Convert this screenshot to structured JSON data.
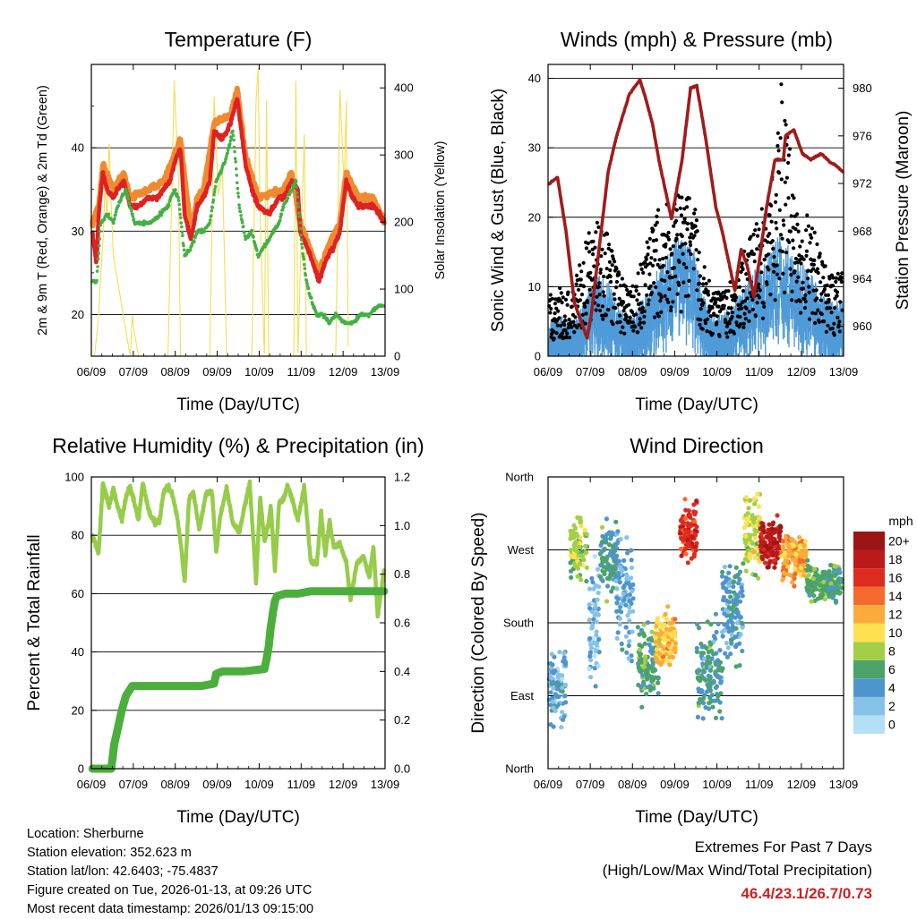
{
  "panels": {
    "temperature": {
      "title": "Temperature (F)",
      "xlabel": "Time (Day/UTC)",
      "ylabel_left": "2m & 9m T (Red, Orange) & 2m Td (Green)",
      "ylabel_right": "Solar Insolation (Yellow)"
    },
    "winds": {
      "title": "Winds (mph) & Pressure (mb)",
      "xlabel": "Time (Day/UTC)",
      "ylabel_left": "Sonic Wind & Gust (Blue, Black)",
      "ylabel_right": "Station Pressure (Maroon)"
    },
    "humidity": {
      "title": "Relative Humidity (%) & Precipitation (in)",
      "xlabel": "Time (Day/UTC)",
      "ylabel_left": "Percent & Total Rainfall"
    },
    "direction": {
      "title": "Wind Direction",
      "xlabel": "Time (Day/UTC)",
      "ylabel_left": "Direction (Colored By Speed)",
      "legend_title": "mph"
    }
  },
  "info": {
    "location": "Location: Sherburne",
    "elevation": "Station elevation: 352.623 m",
    "latlon": "Station lat/lon: 42.6403; -75.4837",
    "created": "Figure created on Tue, 2026-01-13, at 09:26 UTC",
    "recent": "Most recent data timestamp: 2026/01/13 09:15:00"
  },
  "extremes": {
    "line1": "Extremes For Past 7 Days",
    "line2": "(High/Low/Max Wind/Total Precipitation)",
    "values": "46.4/23.1/26.7/0.73"
  },
  "colors": {
    "temp2m": "#dd2222",
    "temp9m": "#f08a30",
    "dewpoint": "#44b044",
    "solar": "#f5dd55",
    "wind": "#4f9bd8",
    "gust": "#000000",
    "pressure": "#a01c1c",
    "rh": "#96cc4a",
    "precip": "#4cae3c"
  },
  "chart_data": [
    {
      "type": "line",
      "title": "Temperature (F)",
      "xlabel": "Time (Day/UTC)",
      "xticks": [
        "06/09",
        "07/09",
        "08/09",
        "09/09",
        "10/09",
        "11/09",
        "12/09",
        "13/09"
      ],
      "xlim": [
        6.375,
        13.375
      ],
      "ylim": [
        15,
        50
      ],
      "yticks": [
        20,
        30,
        40
      ],
      "ylim_right": [
        0,
        435
      ],
      "yticks_right": [
        0,
        100,
        200,
        300,
        400
      ],
      "series": [
        {
          "name": "2m T",
          "axis": "left",
          "x": [
            6.4,
            6.5,
            6.55,
            6.65,
            6.75,
            6.9,
            7.0,
            7.15,
            7.3,
            7.5,
            7.75,
            7.95,
            8.1,
            8.25,
            8.35,
            8.5,
            8.6,
            8.75,
            8.9,
            9.05,
            9.2,
            9.3,
            9.5,
            9.7,
            9.85,
            10.05,
            10.2,
            10.35,
            10.6,
            10.85,
            10.95,
            11.15,
            11.3,
            11.35,
            11.6,
            11.8,
            12.0,
            12.15,
            12.3,
            12.45,
            12.6,
            12.75,
            12.95,
            13.1,
            13.25,
            13.35
          ],
          "values": [
            30,
            26,
            32,
            37,
            35,
            34,
            35,
            36,
            33,
            33,
            34,
            34,
            35,
            36,
            38,
            40,
            32,
            29,
            33,
            34,
            36,
            42,
            41,
            43,
            46,
            38,
            35,
            33,
            32,
            34,
            34,
            36,
            35,
            30,
            27,
            24,
            27,
            28,
            30,
            36,
            34,
            33,
            33,
            33,
            32,
            31
          ]
        },
        {
          "name": "9m T",
          "axis": "left",
          "x": [
            6.4,
            6.55,
            6.65,
            6.9,
            7.15,
            7.3,
            7.75,
            8.1,
            8.35,
            8.5,
            8.75,
            8.9,
            9.05,
            9.3,
            9.7,
            9.85,
            10.05,
            10.35,
            10.95,
            11.15,
            11.35,
            11.8,
            12.0,
            12.3,
            12.45,
            12.75,
            13.1,
            13.35
          ],
          "values": [
            31,
            33,
            38,
            35,
            37,
            34,
            35,
            36,
            39,
            41,
            30,
            34,
            35,
            43,
            44,
            47,
            39,
            34,
            35,
            37,
            31,
            25,
            28,
            31,
            37,
            34,
            34,
            31
          ]
        },
        {
          "name": "2m Td",
          "axis": "left",
          "x": [
            6.4,
            6.5,
            6.6,
            6.75,
            6.9,
            7.0,
            7.2,
            7.4,
            7.6,
            7.8,
            8.0,
            8.2,
            8.35,
            8.45,
            8.6,
            8.75,
            8.9,
            9.05,
            9.2,
            9.35,
            9.45,
            9.6,
            9.75,
            9.9,
            10.05,
            10.2,
            10.35,
            10.6,
            10.85,
            10.95,
            11.15,
            11.25,
            11.4,
            11.5,
            11.6,
            11.75,
            11.9,
            12.05,
            12.2,
            12.4,
            12.6,
            12.8,
            13.0,
            13.2,
            13.35
          ],
          "values": [
            24,
            24,
            31,
            32,
            31,
            33,
            35,
            31,
            31,
            31,
            32,
            33,
            35,
            34,
            27,
            28,
            30,
            30,
            31,
            36,
            37,
            39,
            42,
            33,
            29,
            30,
            27,
            29,
            31,
            33,
            35,
            36,
            28,
            24,
            22,
            20,
            20,
            19,
            20,
            19,
            19,
            20,
            20,
            21,
            21
          ]
        },
        {
          "name": "Solar Insolation",
          "axis": "right",
          "x": [
            6.45,
            6.55,
            6.6,
            6.65,
            6.7,
            6.75,
            6.8,
            6.85,
            6.9,
            7.3,
            7.35,
            7.4,
            7.5,
            8.2,
            8.3,
            8.35,
            8.45,
            8.5,
            9.2,
            9.3,
            9.4,
            9.5,
            9.6,
            10.2,
            10.3,
            10.35,
            10.4,
            10.5,
            10.55,
            10.6,
            11.2,
            11.25,
            11.3,
            11.35,
            11.45,
            11.5,
            12.2,
            12.3,
            12.4,
            12.45,
            12.5
          ],
          "values": [
            0,
            60,
            120,
            170,
            250,
            210,
            320,
            220,
            150,
            0,
            60,
            35,
            0,
            0,
            260,
            410,
            270,
            0,
            0,
            390,
            240,
            280,
            0,
            0,
            380,
            430,
            200,
            0,
            380,
            0,
            0,
            410,
            0,
            120,
            330,
            0,
            0,
            400,
            250,
            380,
            0
          ]
        }
      ]
    },
    {
      "type": "scatter",
      "title": "Winds (mph) & Pressure (mb)",
      "xlabel": "Time (Day/UTC)",
      "xticks": [
        "06/09",
        "07/09",
        "08/09",
        "09/09",
        "10/09",
        "11/09",
        "12/09",
        "13/09"
      ],
      "xlim": [
        6.375,
        13.375
      ],
      "ylim": [
        0,
        42
      ],
      "yticks": [
        0,
        10,
        20,
        30,
        40
      ],
      "ylim_right": [
        957.5,
        982
      ],
      "yticks_right": [
        960,
        964,
        968,
        972,
        976,
        980
      ],
      "series": [
        {
          "name": "Sonic Wind (envelope)",
          "axis": "left",
          "x": [
            6.4,
            6.7,
            6.95,
            7.2,
            7.5,
            7.8,
            8.1,
            8.4,
            8.7,
            8.9,
            9.1,
            9.4,
            9.65,
            9.85,
            10.05,
            10.25,
            10.5,
            10.8,
            11.0,
            11.2,
            11.5,
            11.7,
            11.9,
            12.1,
            12.3,
            12.6,
            12.85,
            13.1,
            13.35
          ],
          "values": [
            5,
            6,
            5,
            8,
            12,
            11,
            7,
            6,
            9,
            12,
            14,
            17,
            17,
            15,
            9,
            6,
            6,
            8,
            10,
            12,
            14,
            16,
            18,
            16,
            14,
            12,
            9,
            8,
            8
          ]
        },
        {
          "name": "Gust (envelope)",
          "axis": "left",
          "x": [
            6.4,
            6.7,
            6.95,
            7.2,
            7.5,
            7.8,
            8.1,
            8.4,
            8.7,
            8.9,
            9.1,
            9.4,
            9.65,
            9.85,
            10.05,
            10.25,
            10.5,
            10.8,
            11.0,
            11.2,
            11.5,
            11.7,
            11.9,
            12.1,
            12.3,
            12.6,
            12.85,
            13.1,
            13.35
          ],
          "values": [
            9,
            10,
            9,
            16,
            20,
            18,
            12,
            10,
            16,
            20,
            24,
            23,
            24,
            22,
            14,
            10,
            9,
            12,
            15,
            18,
            22,
            28,
            40,
            30,
            22,
            20,
            14,
            12,
            12
          ]
        },
        {
          "name": "Station Pressure",
          "axis": "right",
          "x": [
            6.4,
            6.6,
            6.8,
            7.0,
            7.2,
            7.3,
            7.4,
            7.8,
            8.0,
            8.3,
            8.55,
            8.7,
            8.85,
            9.0,
            9.3,
            9.55,
            9.75,
            9.9,
            10.1,
            10.35,
            10.5,
            10.8,
            10.95,
            11.1,
            11.25,
            11.4,
            11.55,
            11.75,
            11.95,
            12.0,
            12.2,
            12.4,
            12.6,
            12.85,
            13.05,
            13.2,
            13.35
          ],
          "values": [
            972,
            972.5,
            968,
            962,
            960,
            959,
            961,
            973,
            976,
            979.5,
            980.7,
            979,
            977,
            974,
            969,
            974,
            980,
            980.2,
            976,
            970,
            968,
            963,
            966.5,
            965,
            962.5,
            966,
            970,
            974,
            974,
            976,
            976.5,
            974.5,
            974,
            974.5,
            973.8,
            973.5,
            973
          ]
        }
      ]
    },
    {
      "type": "line",
      "title": "Relative Humidity (%) & Precipitation (in)",
      "xlabel": "Time (Day/UTC)",
      "xticks": [
        "06/09",
        "07/09",
        "08/09",
        "09/09",
        "10/09",
        "11/09",
        "12/09",
        "13/09"
      ],
      "xlim": [
        6.375,
        13.375
      ],
      "ylim": [
        0,
        100
      ],
      "yticks": [
        0,
        20,
        40,
        60,
        80,
        100
      ],
      "ylim_right": [
        0,
        1.2
      ],
      "yticks_right": [
        "0.0",
        "0.2",
        "0.4",
        "0.6",
        "0.8",
        "1.0",
        "1.2"
      ],
      "series": [
        {
          "name": "Relative Humidity",
          "axis": "left",
          "x": [
            6.4,
            6.55,
            6.65,
            6.8,
            6.9,
            7.0,
            7.1,
            7.2,
            7.3,
            7.4,
            7.5,
            7.6,
            7.75,
            7.9,
            8.0,
            8.1,
            8.2,
            8.3,
            8.4,
            8.5,
            8.6,
            8.7,
            8.8,
            8.95,
            9.1,
            9.25,
            9.35,
            9.45,
            9.6,
            9.75,
            9.9,
            10.0,
            10.15,
            10.3,
            10.4,
            10.5,
            10.6,
            10.65,
            10.75,
            10.85,
            10.95,
            11.05,
            11.15,
            11.3,
            11.45,
            11.6,
            11.75,
            11.85,
            11.95,
            12.05,
            12.15,
            12.3,
            12.45,
            12.55,
            12.7,
            12.85,
            13.0,
            13.1,
            13.2,
            13.35
          ],
          "values": [
            80,
            74,
            98,
            90,
            96,
            90,
            85,
            93,
            97,
            91,
            85,
            98,
            88,
            84,
            85,
            95,
            97,
            94,
            88,
            78,
            64,
            92,
            95,
            82,
            94,
            95,
            74,
            87,
            96,
            84,
            81,
            88,
            98,
            64,
            93,
            78,
            84,
            90,
            68,
            91,
            92,
            97,
            93,
            85,
            97,
            71,
            70,
            88,
            73,
            85,
            76,
            77,
            71,
            58,
            70,
            73,
            66,
            76,
            52,
            68
          ]
        },
        {
          "name": "Total Precipitation",
          "axis": "right",
          "x": [
            6.4,
            6.85,
            6.92,
            7.0,
            7.1,
            7.2,
            7.35,
            7.6,
            8.0,
            8.5,
            9.0,
            9.3,
            9.35,
            9.5,
            10.0,
            10.5,
            10.55,
            10.6,
            10.65,
            10.7,
            10.75,
            10.8,
            11.0,
            11.3,
            11.6,
            12.0,
            12.5,
            13.0,
            13.35
          ],
          "values": [
            0.0,
            0.0,
            0.1,
            0.16,
            0.24,
            0.3,
            0.34,
            0.34,
            0.34,
            0.34,
            0.34,
            0.35,
            0.39,
            0.4,
            0.4,
            0.41,
            0.45,
            0.5,
            0.58,
            0.64,
            0.69,
            0.71,
            0.72,
            0.72,
            0.73,
            0.73,
            0.73,
            0.73,
            0.73
          ]
        }
      ]
    },
    {
      "type": "scatter",
      "title": "Wind Direction",
      "xlabel": "Time (Day/UTC)",
      "xticks": [
        "06/09",
        "07/09",
        "08/09",
        "09/09",
        "10/09",
        "11/09",
        "12/09",
        "13/09"
      ],
      "xlim": [
        6.375,
        13.375
      ],
      "ylim": [
        0,
        360
      ],
      "ytick_labels": [
        "North",
        "East",
        "South",
        "West",
        "North"
      ],
      "colorbar": {
        "title": "mph",
        "labels": [
          "0",
          "2",
          "4",
          "6",
          "8",
          "10",
          "12",
          "14",
          "16",
          "18",
          "20+"
        ],
        "colors": [
          "#b3e0f6",
          "#86c2e8",
          "#4f95cd",
          "#4ba36a",
          "#a2cf45",
          "#ffe04f",
          "#fbab3b",
          "#f46a2c",
          "#de2b1f",
          "#bb1a1a",
          "#9c1515"
        ]
      },
      "clusters": [
        {
          "x_start": 6.4,
          "x_end": 6.8,
          "dir_center": 100,
          "dir_spread": 60,
          "speed": 3
        },
        {
          "x_start": 6.9,
          "x_end": 7.3,
          "dir_center": 270,
          "dir_spread": 50,
          "speed": 8
        },
        {
          "x_start": 7.35,
          "x_end": 7.6,
          "dir_center": 180,
          "dir_spread": 100,
          "speed": 2
        },
        {
          "x_start": 7.6,
          "x_end": 8.0,
          "dir_center": 260,
          "dir_spread": 60,
          "speed": 5
        },
        {
          "x_start": 8.0,
          "x_end": 8.4,
          "dir_center": 220,
          "dir_spread": 100,
          "speed": 3
        },
        {
          "x_start": 8.5,
          "x_end": 9.0,
          "dir_center": 130,
          "dir_spread": 60,
          "speed": 6
        },
        {
          "x_start": 8.9,
          "x_end": 9.4,
          "dir_center": 160,
          "dir_spread": 50,
          "speed": 11
        },
        {
          "x_start": 9.5,
          "x_end": 9.9,
          "dir_center": 290,
          "dir_spread": 50,
          "speed": 16
        },
        {
          "x_start": 9.9,
          "x_end": 10.5,
          "dir_center": 120,
          "dir_spread": 80,
          "speed": 5
        },
        {
          "x_start": 10.5,
          "x_end": 11.0,
          "dir_center": 200,
          "dir_spread": 90,
          "speed": 4
        },
        {
          "x_start": 11.0,
          "x_end": 11.4,
          "dir_center": 290,
          "dir_spread": 70,
          "speed": 9
        },
        {
          "x_start": 11.4,
          "x_end": 11.9,
          "dir_center": 280,
          "dir_spread": 40,
          "speed": 18
        },
        {
          "x_start": 11.9,
          "x_end": 12.5,
          "dir_center": 260,
          "dir_spread": 40,
          "speed": 12
        },
        {
          "x_start": 12.5,
          "x_end": 13.35,
          "dir_center": 230,
          "dir_spread": 30,
          "speed": 6
        }
      ]
    }
  ]
}
